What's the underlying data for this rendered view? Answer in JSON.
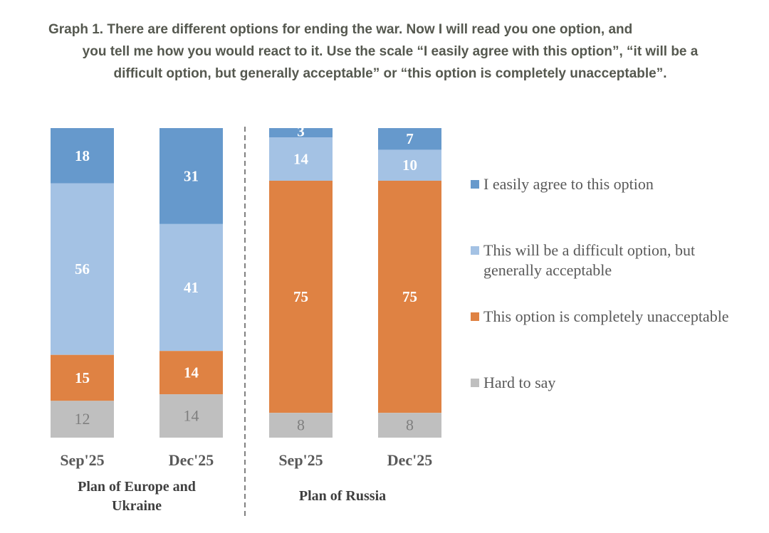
{
  "title_lines": [
    "Graph 1. There are different options for ending the war. Now I will read you one option, and",
    "you tell me how you would react to it. Use the scale “I easily agree with this option”, “it will be a",
    "difficult option, but generally acceptable” or “this option is completely unacceptable”."
  ],
  "chart_data": {
    "type": "bar",
    "stacked": true,
    "percent_stacked": true,
    "title": "Graph 1. There are different options for ending the war. Now I will read you one option, and you tell me how you would react to it. Use the scale “I easily agree with this option”, “it will be a difficult option, but generally acceptable” or “this option is completely unacceptable”.",
    "groups": [
      {
        "label": "Plan of Europe and Ukraine",
        "categories": [
          "Sep'25",
          "Dec'25"
        ]
      },
      {
        "label": "Plan of Russia",
        "categories": [
          "Sep'25",
          "Dec'25"
        ]
      }
    ],
    "categories": [
      "Sep'25",
      "Dec'25",
      "Sep'25",
      "Dec'25"
    ],
    "series": [
      {
        "name": "I easily agree to this option",
        "color": "#6699cc",
        "label_color": "#ffffff",
        "values": [
          18,
          31,
          3,
          7
        ]
      },
      {
        "name": "This will be a difficult option, but generally acceptable",
        "color": "#a4c2e4",
        "label_color": "#ffffff",
        "values": [
          56,
          41,
          14,
          10
        ]
      },
      {
        "name": "This option is completely unacceptable",
        "color": "#df8243",
        "label_color": "#ffffff",
        "values": [
          15,
          14,
          75,
          75
        ]
      },
      {
        "name": "Hard to say",
        "color": "#bfbfbf",
        "label_color": "#7f7f7f",
        "values": [
          12,
          14,
          8,
          8
        ]
      }
    ],
    "xlabel": "",
    "ylabel": "",
    "ylim": [
      0,
      100
    ],
    "grid": false,
    "legend_position": "right",
    "group_divider": "dashed"
  }
}
